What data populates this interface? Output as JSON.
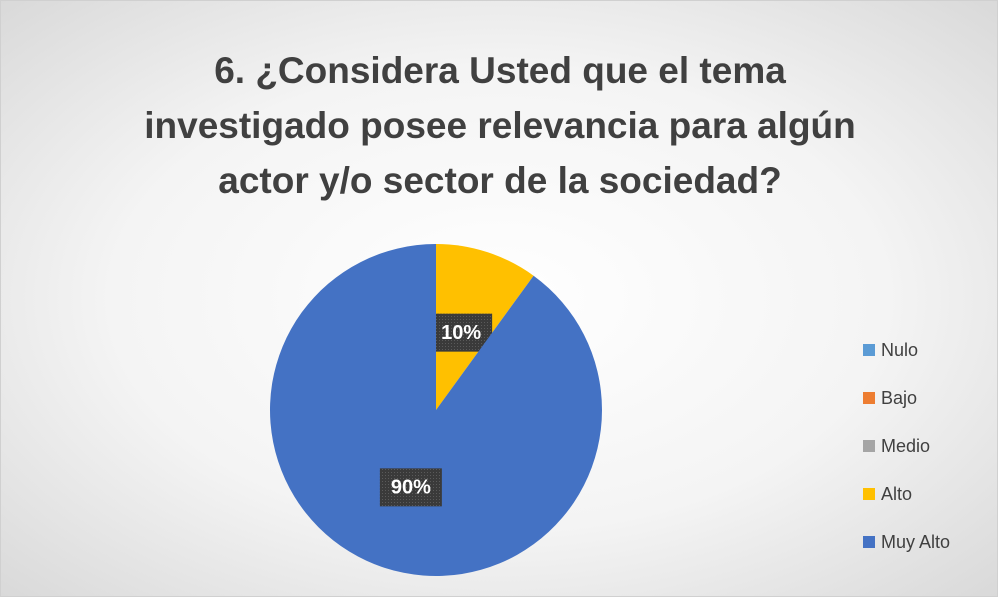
{
  "chart_data": {
    "type": "pie",
    "title": "6. ¿Considera Usted que el tema investigado posee relevancia para algún actor y/o sector de la sociedad?",
    "categories": [
      "Nulo",
      "Bajo",
      "Medio",
      "Alto",
      "Muy Alto"
    ],
    "values": [
      0,
      0,
      0,
      10,
      90
    ],
    "value_labels": [
      null,
      null,
      null,
      "10%",
      "90%"
    ],
    "colors": [
      "#5b9bd5",
      "#ed7d31",
      "#a5a5a5",
      "#ffc000",
      "#4472c4"
    ],
    "legend": "right"
  }
}
